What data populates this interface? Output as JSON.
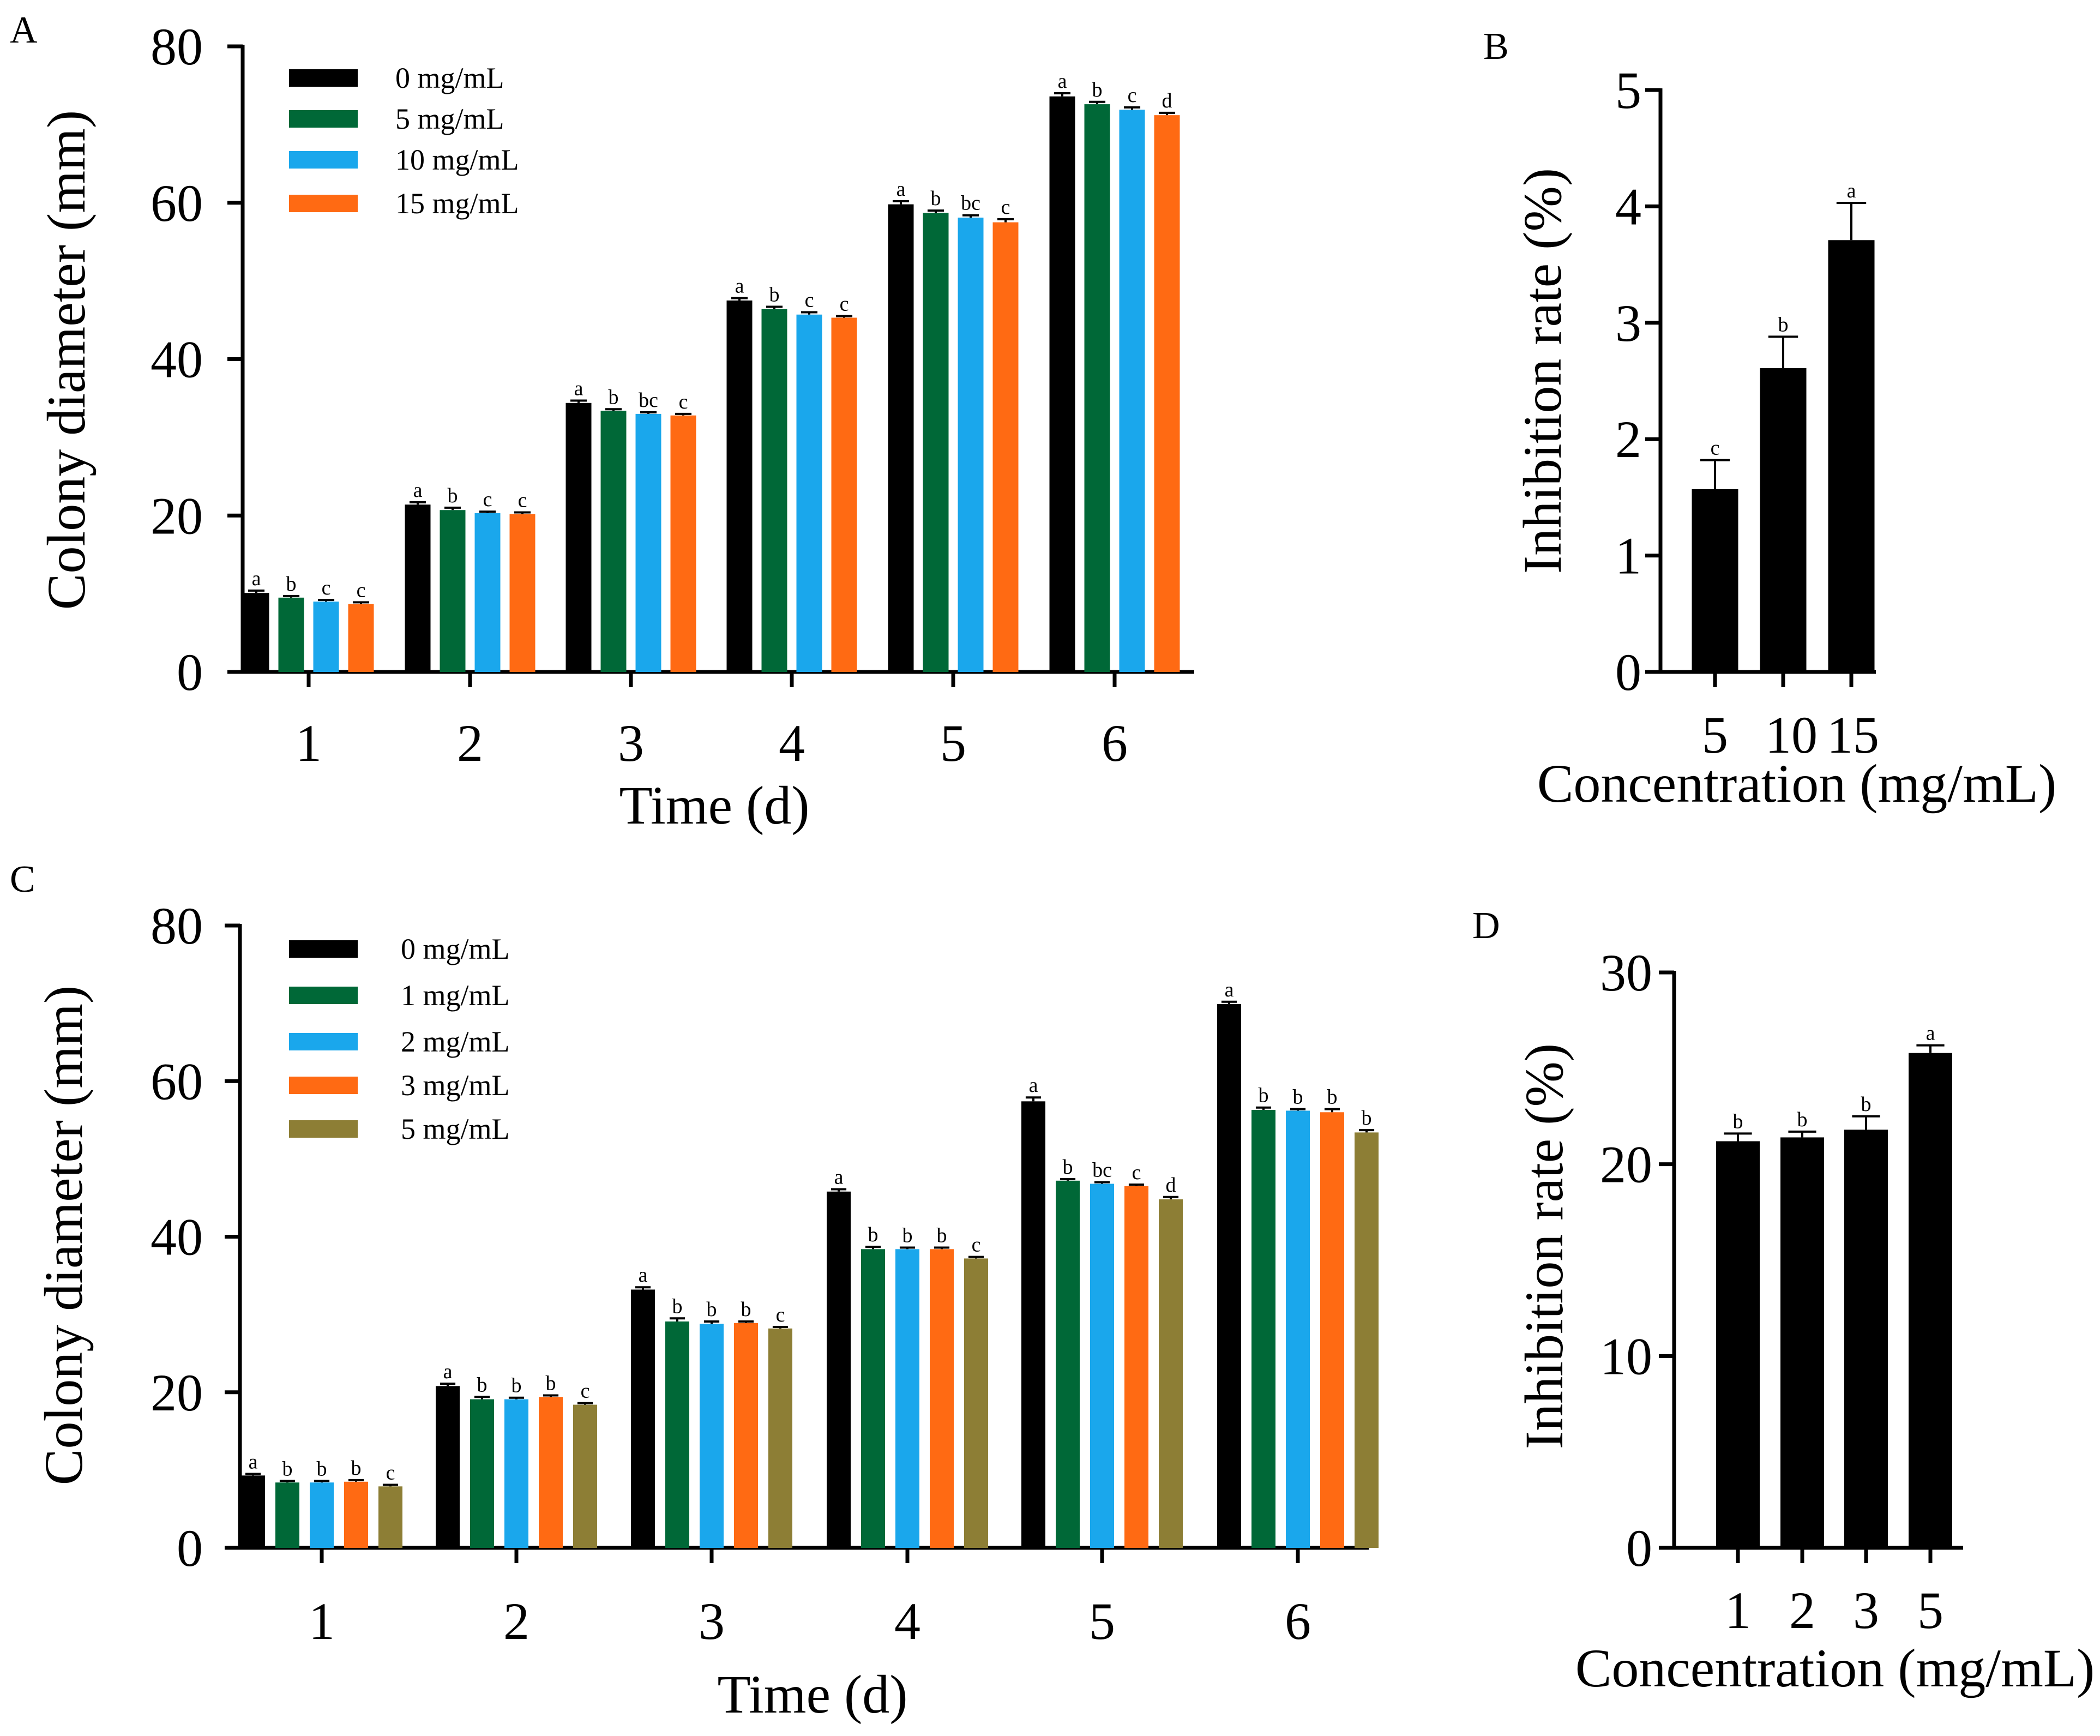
{
  "colors": {
    "0 mg/mL": "#000000",
    "1 mg/mL": "#006837",
    "2 mg/mL": "#1aa7ec",
    "3 mg/mL": "#ff6a13",
    "5 mg/mL": "#8d7e35",
    "10 mg/mL": "#1aa7ec",
    "15 mg/mL": "#ff6a13",
    "single": "#000000"
  },
  "chart_data": [
    {
      "panel": "A",
      "type": "bar",
      "xlabel": "Time (d)",
      "ylabel": "Colony diameter (mm)",
      "ylim": [
        0,
        80
      ],
      "yticks": [
        0,
        20,
        40,
        60,
        80
      ],
      "categories": [
        "1",
        "2",
        "3",
        "4",
        "5",
        "6"
      ],
      "series": [
        {
          "name": "0 mg/mL",
          "color_key": "0 mg/mL",
          "values": [
            10.1,
            21.4,
            34.4,
            47.5,
            59.8,
            73.6
          ],
          "errors": [
            0.3,
            0.3,
            0.3,
            0.3,
            0.4,
            0.4
          ],
          "letters": [
            "a",
            "a",
            "a",
            "a",
            "a",
            "a"
          ]
        },
        {
          "name": "5 mg/mL",
          "color_key": "1 mg/mL",
          "values": [
            9.5,
            20.7,
            33.4,
            46.4,
            58.7,
            72.6
          ],
          "errors": [
            0.2,
            0.3,
            0.2,
            0.3,
            0.3,
            0.3
          ],
          "letters": [
            "b",
            "b",
            "b",
            "b",
            "b",
            "b"
          ]
        },
        {
          "name": "10 mg/mL",
          "color_key": "10 mg/mL",
          "values": [
            9.0,
            20.3,
            33.0,
            45.7,
            58.1,
            71.9
          ],
          "errors": [
            0.2,
            0.2,
            0.2,
            0.3,
            0.3,
            0.3
          ],
          "letters": [
            "c",
            "c",
            "bc",
            "c",
            "bc",
            "c"
          ]
        },
        {
          "name": "15 mg/mL",
          "color_key": "15 mg/mL",
          "values": [
            8.7,
            20.2,
            32.8,
            45.3,
            57.5,
            71.2
          ],
          "errors": [
            0.2,
            0.2,
            0.2,
            0.2,
            0.4,
            0.3
          ],
          "letters": [
            "c",
            "c",
            "c",
            "c",
            "c",
            "d"
          ]
        }
      ]
    },
    {
      "panel": "B",
      "type": "bar",
      "xlabel": "Concentration (mg/mL)",
      "ylabel": "Inhibition rate (%)",
      "ylim": [
        0,
        5
      ],
      "yticks": [
        0,
        1,
        2,
        3,
        4,
        5
      ],
      "categories": [
        "5",
        "10",
        "15"
      ],
      "series": [
        {
          "name": "Inhibition rate",
          "color_key": "single",
          "values": [
            1.57,
            2.61,
            3.71
          ],
          "errors": [
            0.25,
            0.27,
            0.32
          ],
          "letters": [
            "c",
            "b",
            "a"
          ]
        }
      ]
    },
    {
      "panel": "C",
      "type": "bar",
      "xlabel": "Time (d)",
      "ylabel": "Colony diameter (mm)",
      "ylim": [
        0,
        80
      ],
      "yticks": [
        0,
        20,
        40,
        60,
        80
      ],
      "categories": [
        "1",
        "2",
        "3",
        "4",
        "5",
        "6"
      ],
      "series": [
        {
          "name": "0 mg/mL",
          "color_key": "0 mg/mL",
          "values": [
            9.3,
            20.8,
            33.2,
            45.8,
            57.4,
            69.9
          ],
          "errors": [
            0.2,
            0.3,
            0.3,
            0.3,
            0.5,
            0.3
          ],
          "letters": [
            "a",
            "a",
            "a",
            "a",
            "a",
            "a"
          ]
        },
        {
          "name": "1 mg/mL",
          "color_key": "1 mg/mL",
          "values": [
            8.4,
            19.1,
            29.1,
            38.4,
            47.2,
            56.3
          ],
          "errors": [
            0.2,
            0.3,
            0.4,
            0.3,
            0.2,
            0.3
          ],
          "letters": [
            "b",
            "b",
            "b",
            "b",
            "b",
            "b"
          ]
        },
        {
          "name": "2 mg/mL",
          "color_key": "2 mg/mL",
          "values": [
            8.4,
            19.1,
            28.8,
            38.4,
            46.8,
            56.2
          ],
          "errors": [
            0.2,
            0.2,
            0.3,
            0.2,
            0.2,
            0.2
          ],
          "letters": [
            "b",
            "b",
            "b",
            "b",
            "bc",
            "b"
          ]
        },
        {
          "name": "3 mg/mL",
          "color_key": "3 mg/mL",
          "values": [
            8.5,
            19.4,
            28.9,
            38.4,
            46.5,
            56.0
          ],
          "errors": [
            0.2,
            0.2,
            0.2,
            0.2,
            0.2,
            0.4
          ],
          "letters": [
            "b",
            "b",
            "b",
            "b",
            "c",
            "b"
          ]
        },
        {
          "name": "5 mg/mL",
          "color_key": "5 mg/mL",
          "values": [
            7.9,
            18.4,
            28.2,
            37.2,
            44.8,
            53.4
          ],
          "errors": [
            0.2,
            0.2,
            0.2,
            0.2,
            0.3,
            0.3
          ],
          "letters": [
            "c",
            "c",
            "c",
            "c",
            "d",
            "b"
          ]
        }
      ]
    },
    {
      "panel": "D",
      "type": "bar",
      "xlabel": "Concentration (mg/mL)",
      "ylabel": "Inhibition rate (%)",
      "ylim": [
        0,
        30
      ],
      "yticks": [
        0,
        10,
        20,
        30
      ],
      "categories": [
        "1",
        "2",
        "3",
        "5"
      ],
      "series": [
        {
          "name": "Inhibition rate",
          "color_key": "single",
          "values": [
            21.2,
            21.4,
            21.8,
            25.8
          ],
          "errors": [
            0.4,
            0.3,
            0.7,
            0.4
          ],
          "letters": [
            "b",
            "b",
            "b",
            "a"
          ]
        }
      ]
    }
  ]
}
